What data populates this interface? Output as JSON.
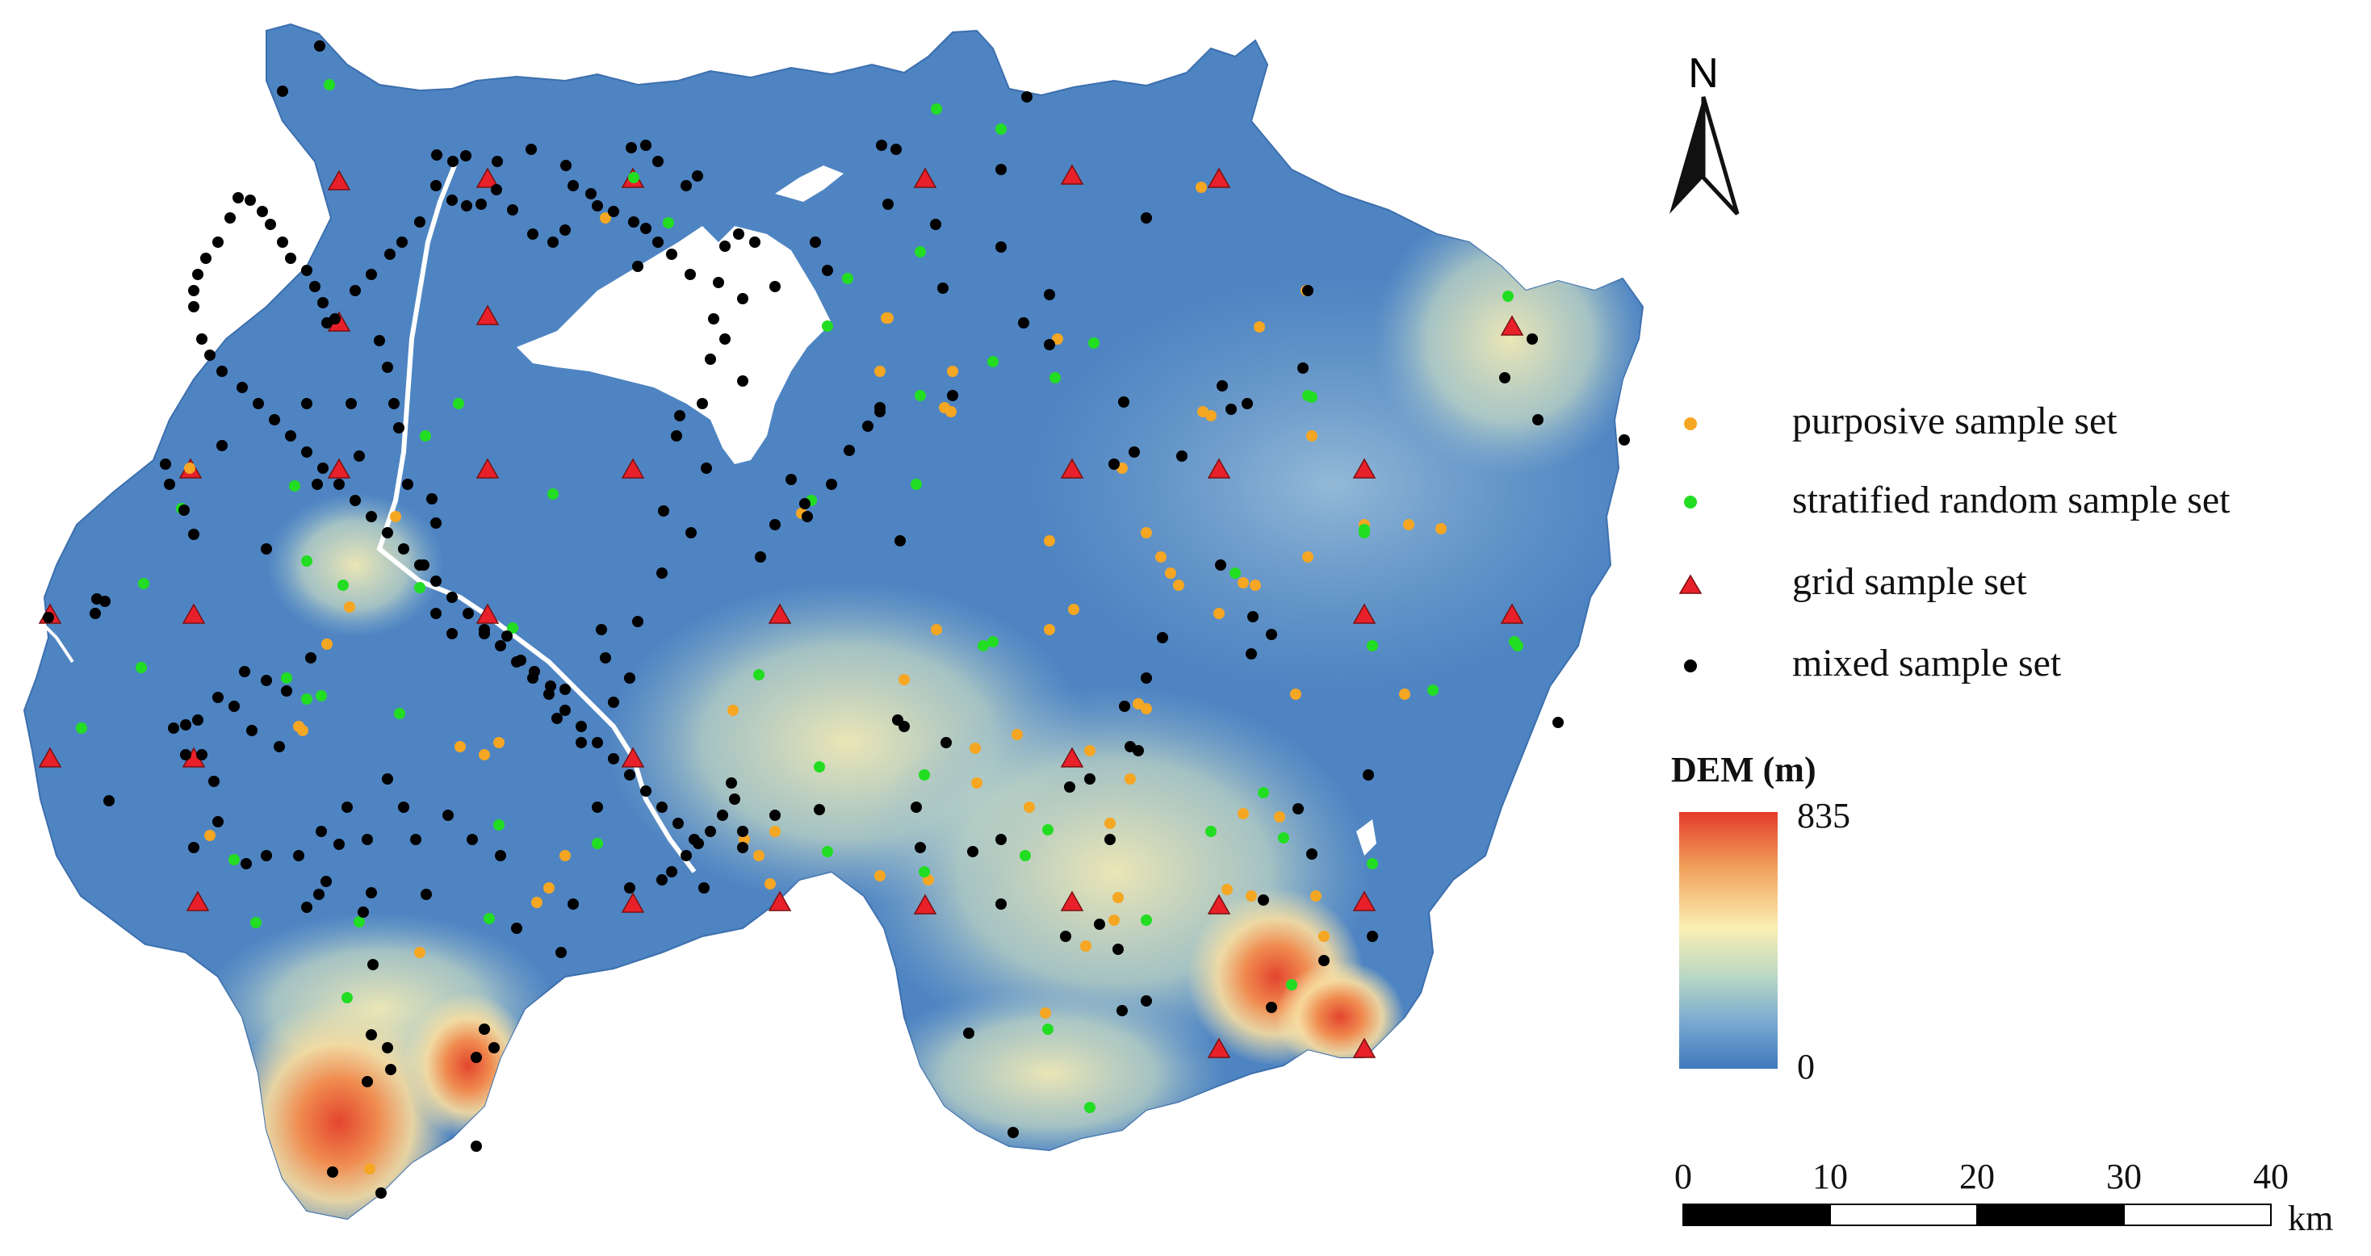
{
  "north_arrow": {
    "label": "N"
  },
  "legend": {
    "items": [
      {
        "label": "purposive sample set",
        "symbol": "dot",
        "color": "#f5a623"
      },
      {
        "label": "stratified random sample set",
        "symbol": "dot",
        "color": "#22dd22"
      },
      {
        "label": "grid sample set",
        "symbol": "triangle",
        "color": "#e8202a"
      },
      {
        "label": "mixed sample set",
        "symbol": "dot",
        "color": "#000000"
      }
    ]
  },
  "dem": {
    "title": "DEM (m)",
    "max_label": "835",
    "min_label": "0",
    "colors": [
      "#e43b2a",
      "#fbefb3",
      "#3f79bd"
    ]
  },
  "scale_bar": {
    "ticks": [
      "0",
      "10",
      "20",
      "30",
      "40"
    ],
    "unit": "km"
  },
  "colors": {
    "lowland": "#4e84c2",
    "water": "#ffffff",
    "highland": "#f0e6ad",
    "peak": "#e3452e"
  }
}
